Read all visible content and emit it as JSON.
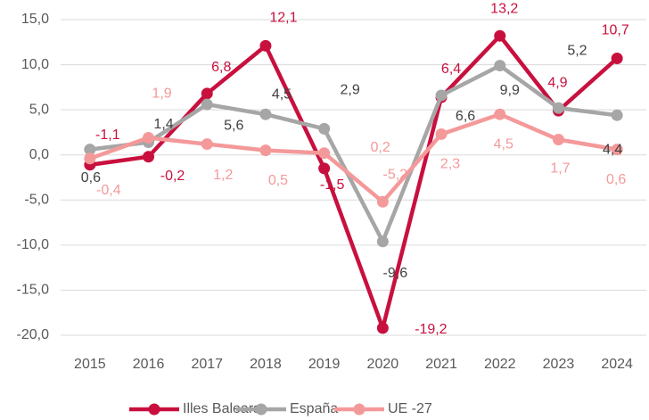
{
  "chart_data": {
    "type": "line",
    "categories": [
      "2015",
      "2016",
      "2017",
      "2018",
      "2019",
      "2020",
      "2021",
      "2022",
      "2023",
      "2024"
    ],
    "series": [
      {
        "name": "Illes Balears",
        "color": "#c8103e",
        "values": [
          -1.1,
          -0.2,
          6.8,
          12.1,
          -1.5,
          -19.2,
          6.4,
          13.2,
          4.9,
          10.7
        ],
        "value_labels": [
          "-1,1",
          "-0,2",
          "6,8",
          "12,1",
          "-1,5",
          "-19,2",
          "6,4",
          "13,2",
          "4,9",
          "10,7"
        ]
      },
      {
        "name": "España",
        "color": "#a6a6a6",
        "values": [
          0.6,
          1.4,
          5.6,
          4.5,
          2.9,
          -9.6,
          6.6,
          9.9,
          5.2,
          4.4
        ],
        "value_labels": [
          "0,6",
          "1,4",
          "5,6",
          "4,5",
          "2,9",
          "-9,6",
          "6,6",
          "9,9",
          "5,2",
          "4,4"
        ]
      },
      {
        "name": "UE -27",
        "color": "#f4999a",
        "values": [
          -0.4,
          1.9,
          1.2,
          0.5,
          0.2,
          -5.2,
          2.3,
          4.5,
          1.7,
          0.6
        ],
        "value_labels": [
          "-0,4",
          "1,9",
          "1,2",
          "0,5",
          "0,2",
          "-5,2",
          "2,3",
          "4,5",
          "1,7",
          "0,6"
        ]
      }
    ],
    "ylim": [
      -20,
      15
    ],
    "yticks": [
      {
        "value": -20,
        "label": "-20,0"
      },
      {
        "value": -15,
        "label": "-15,0"
      },
      {
        "value": -10,
        "label": "-10,0"
      },
      {
        "value": -5,
        "label": "-5,0"
      },
      {
        "value": 0,
        "label": "0,0"
      },
      {
        "value": 5,
        "label": "5,0"
      },
      {
        "value": 10,
        "label": "10,0"
      },
      {
        "value": 15,
        "label": "15,0"
      }
    ],
    "grid": true,
    "legend": "bottom"
  }
}
